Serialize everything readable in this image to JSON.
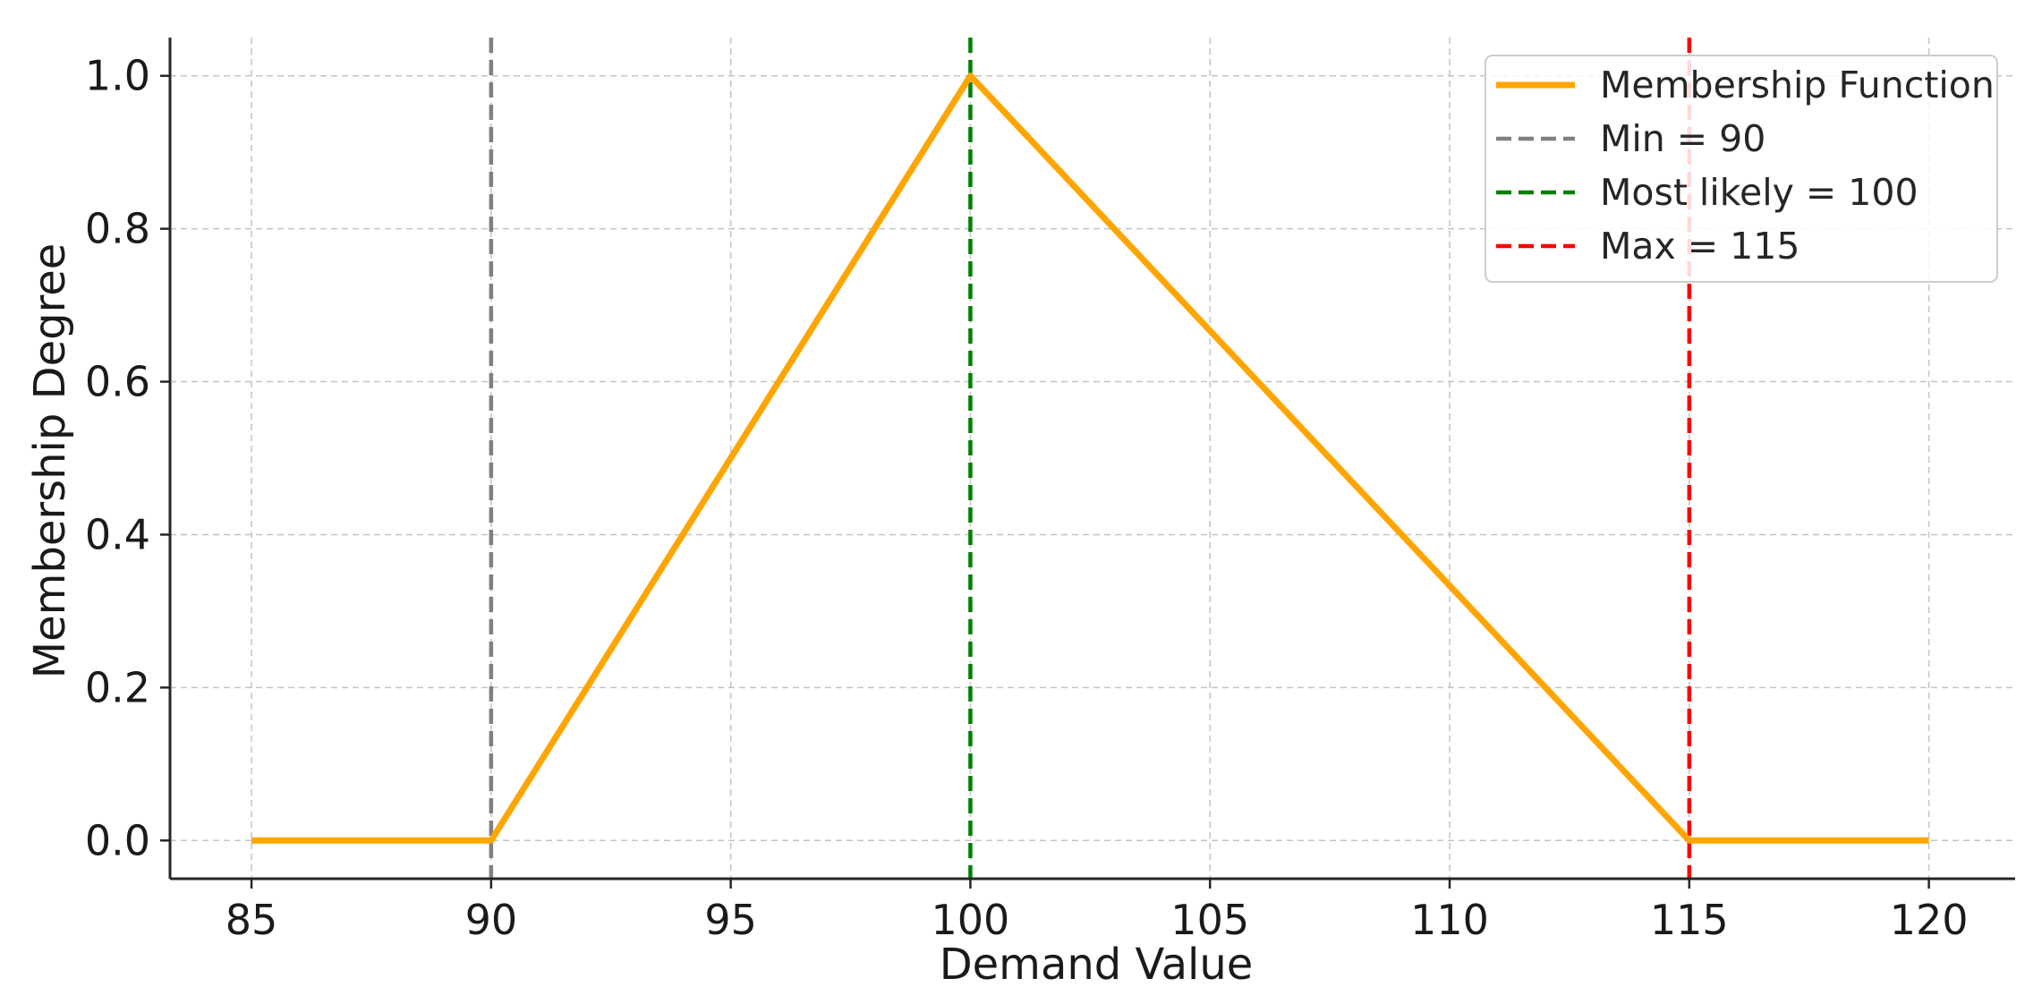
{
  "chart_data": {
    "type": "line",
    "title": "",
    "xlabel": "Demand Value",
    "ylabel": "Membership Degree",
    "xlim": [
      83.3,
      121.8
    ],
    "ylim": [
      -0.05,
      1.05
    ],
    "x_ticks": [
      85,
      90,
      95,
      100,
      105,
      110,
      115,
      120
    ],
    "x_tick_labels": [
      "85",
      "90",
      "95",
      "100",
      "105",
      "110",
      "115",
      "120"
    ],
    "y_ticks": [
      0.0,
      0.2,
      0.4,
      0.6,
      0.8,
      1.0
    ],
    "y_tick_labels": [
      "0.0",
      "0.2",
      "0.4",
      "0.6",
      "0.8",
      "1.0"
    ],
    "grid": true,
    "legend_position": "top-right",
    "series": [
      {
        "name": "Membership Function",
        "color": "#FFA500",
        "style": "solid",
        "x": [
          85,
          90,
          100,
          115,
          120
        ],
        "y": [
          0,
          0,
          1,
          0,
          0
        ]
      }
    ],
    "vlines": [
      {
        "name": "Min = 90",
        "x": 90,
        "color": "#808080",
        "style": "dashed"
      },
      {
        "name": "Most likely = 100",
        "x": 100,
        "color": "#008000",
        "style": "dashed"
      },
      {
        "name": "Max = 115",
        "x": 115,
        "color": "#FF0000",
        "style": "dashed"
      }
    ]
  }
}
